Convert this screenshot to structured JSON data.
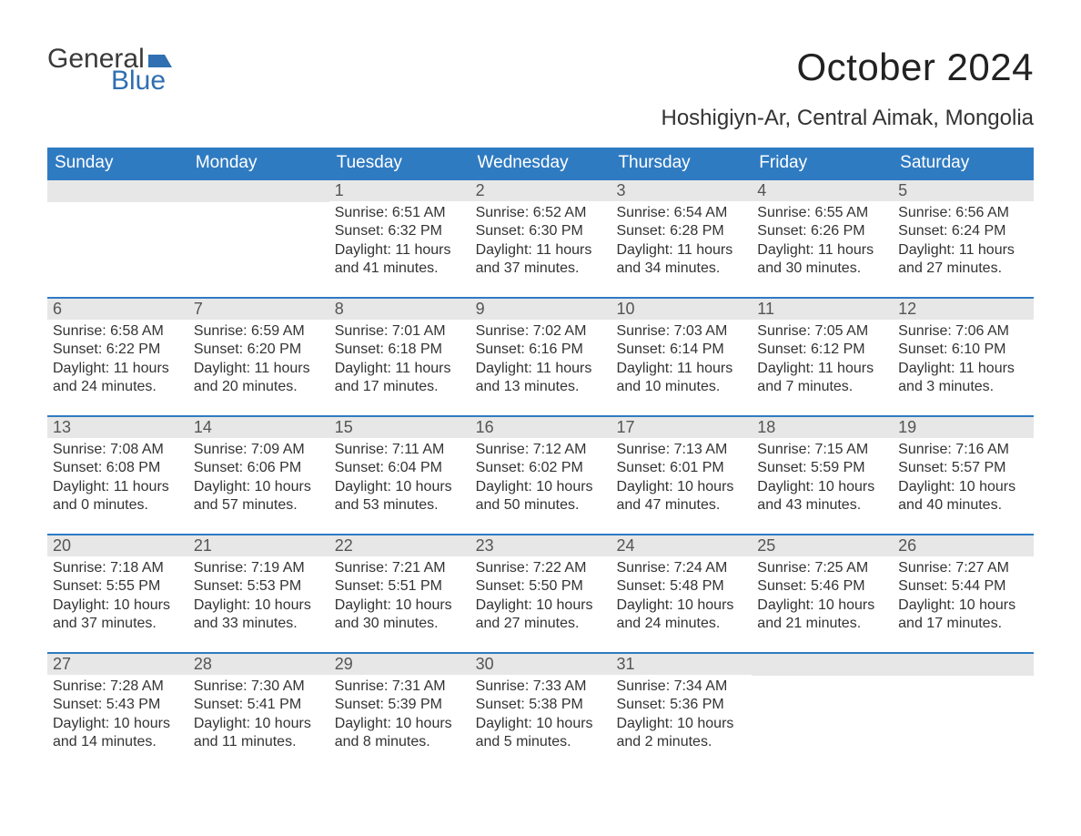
{
  "brand": {
    "word1": "General",
    "word2": "Blue",
    "flag_color": "#2f6fb2"
  },
  "title": "October 2024",
  "location": "Hoshigiyn-Ar, Central Aimak, Mongolia",
  "colors": {
    "header_bg": "#2f7bc2",
    "header_text": "#ffffff",
    "daynum_bg": "#e7e7e7",
    "daynum_text": "#555555",
    "body_text": "#333333",
    "rule": "#2f7bc2",
    "background": "#ffffff"
  },
  "typography": {
    "title_fontsize": 42,
    "location_fontsize": 24,
    "dow_fontsize": 19,
    "daynum_fontsize": 18,
    "body_fontsize": 16,
    "font_family": "Segoe UI"
  },
  "days_of_week": [
    "Sunday",
    "Monday",
    "Tuesday",
    "Wednesday",
    "Thursday",
    "Friday",
    "Saturday"
  ],
  "weeks": [
    [
      {
        "blank": true
      },
      {
        "blank": true
      },
      {
        "n": "1",
        "sunrise": "Sunrise: 6:51 AM",
        "sunset": "Sunset: 6:32 PM",
        "daylight": "Daylight: 11 hours and 41 minutes."
      },
      {
        "n": "2",
        "sunrise": "Sunrise: 6:52 AM",
        "sunset": "Sunset: 6:30 PM",
        "daylight": "Daylight: 11 hours and 37 minutes."
      },
      {
        "n": "3",
        "sunrise": "Sunrise: 6:54 AM",
        "sunset": "Sunset: 6:28 PM",
        "daylight": "Daylight: 11 hours and 34 minutes."
      },
      {
        "n": "4",
        "sunrise": "Sunrise: 6:55 AM",
        "sunset": "Sunset: 6:26 PM",
        "daylight": "Daylight: 11 hours and 30 minutes."
      },
      {
        "n": "5",
        "sunrise": "Sunrise: 6:56 AM",
        "sunset": "Sunset: 6:24 PM",
        "daylight": "Daylight: 11 hours and 27 minutes."
      }
    ],
    [
      {
        "n": "6",
        "sunrise": "Sunrise: 6:58 AM",
        "sunset": "Sunset: 6:22 PM",
        "daylight": "Daylight: 11 hours and 24 minutes."
      },
      {
        "n": "7",
        "sunrise": "Sunrise: 6:59 AM",
        "sunset": "Sunset: 6:20 PM",
        "daylight": "Daylight: 11 hours and 20 minutes."
      },
      {
        "n": "8",
        "sunrise": "Sunrise: 7:01 AM",
        "sunset": "Sunset: 6:18 PM",
        "daylight": "Daylight: 11 hours and 17 minutes."
      },
      {
        "n": "9",
        "sunrise": "Sunrise: 7:02 AM",
        "sunset": "Sunset: 6:16 PM",
        "daylight": "Daylight: 11 hours and 13 minutes."
      },
      {
        "n": "10",
        "sunrise": "Sunrise: 7:03 AM",
        "sunset": "Sunset: 6:14 PM",
        "daylight": "Daylight: 11 hours and 10 minutes."
      },
      {
        "n": "11",
        "sunrise": "Sunrise: 7:05 AM",
        "sunset": "Sunset: 6:12 PM",
        "daylight": "Daylight: 11 hours and 7 minutes."
      },
      {
        "n": "12",
        "sunrise": "Sunrise: 7:06 AM",
        "sunset": "Sunset: 6:10 PM",
        "daylight": "Daylight: 11 hours and 3 minutes."
      }
    ],
    [
      {
        "n": "13",
        "sunrise": "Sunrise: 7:08 AM",
        "sunset": "Sunset: 6:08 PM",
        "daylight": "Daylight: 11 hours and 0 minutes."
      },
      {
        "n": "14",
        "sunrise": "Sunrise: 7:09 AM",
        "sunset": "Sunset: 6:06 PM",
        "daylight": "Daylight: 10 hours and 57 minutes."
      },
      {
        "n": "15",
        "sunrise": "Sunrise: 7:11 AM",
        "sunset": "Sunset: 6:04 PM",
        "daylight": "Daylight: 10 hours and 53 minutes."
      },
      {
        "n": "16",
        "sunrise": "Sunrise: 7:12 AM",
        "sunset": "Sunset: 6:02 PM",
        "daylight": "Daylight: 10 hours and 50 minutes."
      },
      {
        "n": "17",
        "sunrise": "Sunrise: 7:13 AM",
        "sunset": "Sunset: 6:01 PM",
        "daylight": "Daylight: 10 hours and 47 minutes."
      },
      {
        "n": "18",
        "sunrise": "Sunrise: 7:15 AM",
        "sunset": "Sunset: 5:59 PM",
        "daylight": "Daylight: 10 hours and 43 minutes."
      },
      {
        "n": "19",
        "sunrise": "Sunrise: 7:16 AM",
        "sunset": "Sunset: 5:57 PM",
        "daylight": "Daylight: 10 hours and 40 minutes."
      }
    ],
    [
      {
        "n": "20",
        "sunrise": "Sunrise: 7:18 AM",
        "sunset": "Sunset: 5:55 PM",
        "daylight": "Daylight: 10 hours and 37 minutes."
      },
      {
        "n": "21",
        "sunrise": "Sunrise: 7:19 AM",
        "sunset": "Sunset: 5:53 PM",
        "daylight": "Daylight: 10 hours and 33 minutes."
      },
      {
        "n": "22",
        "sunrise": "Sunrise: 7:21 AM",
        "sunset": "Sunset: 5:51 PM",
        "daylight": "Daylight: 10 hours and 30 minutes."
      },
      {
        "n": "23",
        "sunrise": "Sunrise: 7:22 AM",
        "sunset": "Sunset: 5:50 PM",
        "daylight": "Daylight: 10 hours and 27 minutes."
      },
      {
        "n": "24",
        "sunrise": "Sunrise: 7:24 AM",
        "sunset": "Sunset: 5:48 PM",
        "daylight": "Daylight: 10 hours and 24 minutes."
      },
      {
        "n": "25",
        "sunrise": "Sunrise: 7:25 AM",
        "sunset": "Sunset: 5:46 PM",
        "daylight": "Daylight: 10 hours and 21 minutes."
      },
      {
        "n": "26",
        "sunrise": "Sunrise: 7:27 AM",
        "sunset": "Sunset: 5:44 PM",
        "daylight": "Daylight: 10 hours and 17 minutes."
      }
    ],
    [
      {
        "n": "27",
        "sunrise": "Sunrise: 7:28 AM",
        "sunset": "Sunset: 5:43 PM",
        "daylight": "Daylight: 10 hours and 14 minutes."
      },
      {
        "n": "28",
        "sunrise": "Sunrise: 7:30 AM",
        "sunset": "Sunset: 5:41 PM",
        "daylight": "Daylight: 10 hours and 11 minutes."
      },
      {
        "n": "29",
        "sunrise": "Sunrise: 7:31 AM",
        "sunset": "Sunset: 5:39 PM",
        "daylight": "Daylight: 10 hours and 8 minutes."
      },
      {
        "n": "30",
        "sunrise": "Sunrise: 7:33 AM",
        "sunset": "Sunset: 5:38 PM",
        "daylight": "Daylight: 10 hours and 5 minutes."
      },
      {
        "n": "31",
        "sunrise": "Sunrise: 7:34 AM",
        "sunset": "Sunset: 5:36 PM",
        "daylight": "Daylight: 10 hours and 2 minutes."
      },
      {
        "blank": true
      },
      {
        "blank": true
      }
    ]
  ]
}
